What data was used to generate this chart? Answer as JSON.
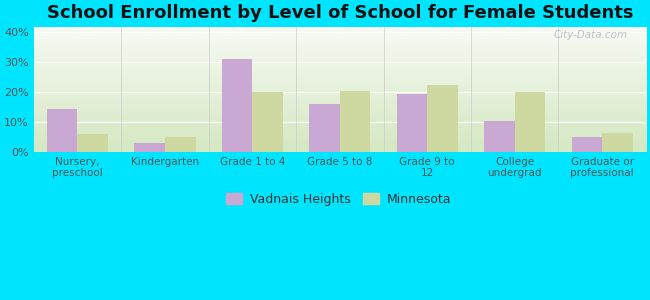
{
  "title": "School Enrollment by Level of School for Female Students",
  "categories": [
    "Nursery,\npreschool",
    "Kindergarten",
    "Grade 1 to 4",
    "Grade 5 to 8",
    "Grade 9 to\n12",
    "College\nundergrad",
    "Graduate or\nprofessional"
  ],
  "vadnais_heights": [
    14.5,
    3.0,
    31.0,
    16.0,
    19.5,
    10.5,
    5.0
  ],
  "minnesota": [
    6.0,
    5.0,
    20.0,
    20.5,
    22.5,
    20.0,
    6.5
  ],
  "vadnais_color": "#c9a8d4",
  "minnesota_color": "#cdd9a0",
  "background_outer": "#00e5ff",
  "background_inner_bottom": "#d4e8c2",
  "background_inner_top": "#f8faf4",
  "ylim": [
    0,
    42
  ],
  "yticks": [
    0,
    10,
    20,
    30,
    40
  ],
  "ytick_labels": [
    "0%",
    "10%",
    "20%",
    "30%",
    "40%"
  ],
  "bar_width": 0.35,
  "legend_vadnais": "Vadnais Heights",
  "legend_minnesota": "Minnesota",
  "title_fontsize": 13,
  "tick_fontsize": 7.5,
  "ytick_fontsize": 8
}
